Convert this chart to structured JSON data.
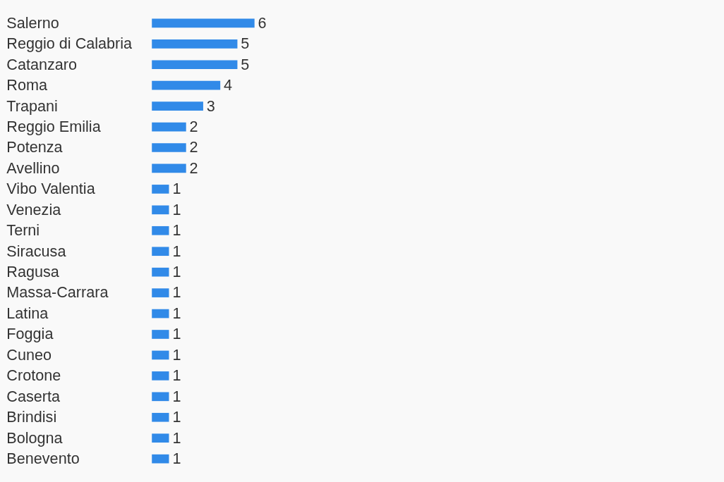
{
  "chart_data": {
    "type": "bar",
    "orientation": "horizontal",
    "categories": [
      "Salerno",
      "Reggio di Calabria",
      "Catanzaro",
      "Roma",
      "Trapani",
      "Reggio Emilia",
      "Potenza",
      "Avellino",
      "Vibo Valentia",
      "Venezia",
      "Terni",
      "Siracusa",
      "Ragusa",
      "Massa-Carrara",
      "Latina",
      "Foggia",
      "Cuneo",
      "Crotone",
      "Caserta",
      "Brindisi",
      "Bologna",
      "Benevento"
    ],
    "values": [
      6,
      5,
      5,
      4,
      3,
      2,
      2,
      2,
      1,
      1,
      1,
      1,
      1,
      1,
      1,
      1,
      1,
      1,
      1,
      1,
      1,
      1
    ],
    "color": "#318ae8",
    "data_labels": true,
    "tick_labels": "y",
    "grid": false
  }
}
